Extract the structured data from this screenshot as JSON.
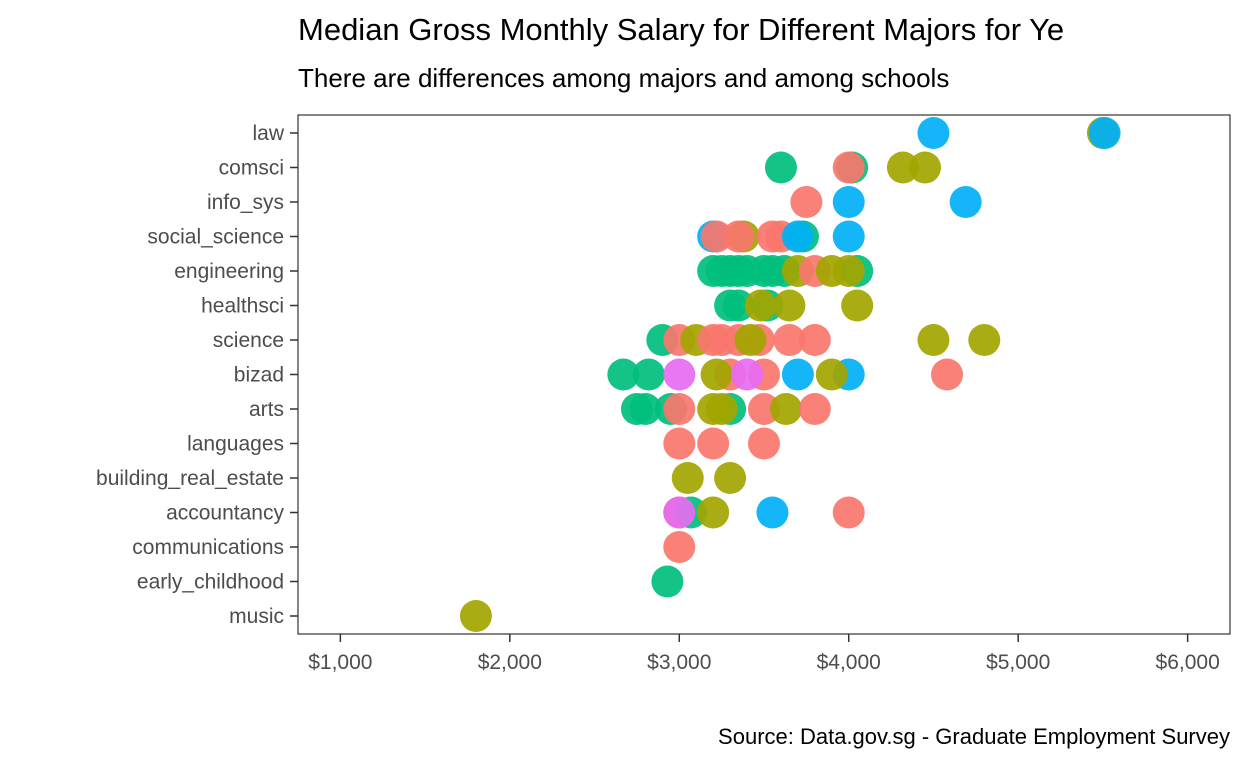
{
  "chart_data": {
    "type": "scatter",
    "title": "Median Gross Monthly Salary for Different Majors for Ye",
    "subtitle": "There are differences among majors and among schools",
    "caption": "Source: Data.gov.sg - Graduate Employment Survey",
    "xlabel": "",
    "ylabel": "",
    "xlim": [
      750,
      6250
    ],
    "x_ticks": [
      1000,
      2000,
      3000,
      4000,
      5000,
      6000
    ],
    "x_tick_labels": [
      "$1,000",
      "$2,000",
      "$3,000",
      "$4,000",
      "$5,000",
      "$6,000"
    ],
    "categories": [
      "law",
      "comsci",
      "info_sys",
      "social_science",
      "engineering",
      "healthsci",
      "science",
      "bizad",
      "arts",
      "languages",
      "building_real_estate",
      "accountancy",
      "communications",
      "early_childhood",
      "music"
    ],
    "grid": false,
    "legend": "none",
    "colors": {
      "red": "#f8766d",
      "olive": "#a3a500",
      "green": "#00bf7d",
      "blue": "#00b0f6",
      "magenta": "#e76bf3"
    },
    "points": [
      {
        "major": "law",
        "x": 4500,
        "color": "blue"
      },
      {
        "major": "law",
        "x": 5500,
        "color": "olive"
      },
      {
        "major": "law",
        "x": 5510,
        "color": "blue"
      },
      {
        "major": "comsci",
        "x": 3600,
        "color": "green"
      },
      {
        "major": "comsci",
        "x": 4020,
        "color": "green"
      },
      {
        "major": "comsci",
        "x": 4000,
        "color": "red"
      },
      {
        "major": "comsci",
        "x": 4320,
        "color": "olive"
      },
      {
        "major": "comsci",
        "x": 4450,
        "color": "olive"
      },
      {
        "major": "info_sys",
        "x": 3750,
        "color": "red"
      },
      {
        "major": "info_sys",
        "x": 4000,
        "color": "blue"
      },
      {
        "major": "info_sys",
        "x": 4690,
        "color": "blue"
      },
      {
        "major": "social_science",
        "x": 3200,
        "color": "blue"
      },
      {
        "major": "social_science",
        "x": 3220,
        "color": "red"
      },
      {
        "major": "social_science",
        "x": 3380,
        "color": "olive"
      },
      {
        "major": "social_science",
        "x": 3350,
        "color": "red"
      },
      {
        "major": "social_science",
        "x": 3550,
        "color": "red"
      },
      {
        "major": "social_science",
        "x": 3600,
        "color": "red"
      },
      {
        "major": "social_science",
        "x": 3730,
        "color": "green"
      },
      {
        "major": "social_science",
        "x": 3700,
        "color": "blue"
      },
      {
        "major": "social_science",
        "x": 4000,
        "color": "blue"
      },
      {
        "major": "engineering",
        "x": 3200,
        "color": "green"
      },
      {
        "major": "engineering",
        "x": 3250,
        "color": "green"
      },
      {
        "major": "engineering",
        "x": 3300,
        "color": "green"
      },
      {
        "major": "engineering",
        "x": 3350,
        "color": "green"
      },
      {
        "major": "engineering",
        "x": 3400,
        "color": "green"
      },
      {
        "major": "engineering",
        "x": 3500,
        "color": "green"
      },
      {
        "major": "engineering",
        "x": 3550,
        "color": "green"
      },
      {
        "major": "engineering",
        "x": 3620,
        "color": "green"
      },
      {
        "major": "engineering",
        "x": 3700,
        "color": "olive"
      },
      {
        "major": "engineering",
        "x": 3800,
        "color": "red"
      },
      {
        "major": "engineering",
        "x": 3900,
        "color": "olive"
      },
      {
        "major": "engineering",
        "x": 4050,
        "color": "green"
      },
      {
        "major": "engineering",
        "x": 4000,
        "color": "olive"
      },
      {
        "major": "healthsci",
        "x": 3300,
        "color": "green"
      },
      {
        "major": "healthsci",
        "x": 3350,
        "color": "green"
      },
      {
        "major": "healthsci",
        "x": 3520,
        "color": "green"
      },
      {
        "major": "healthsci",
        "x": 3480,
        "color": "olive"
      },
      {
        "major": "healthsci",
        "x": 3650,
        "color": "olive"
      },
      {
        "major": "healthsci",
        "x": 4050,
        "color": "olive"
      },
      {
        "major": "science",
        "x": 2900,
        "color": "green"
      },
      {
        "major": "science",
        "x": 3000,
        "color": "red"
      },
      {
        "major": "science",
        "x": 3100,
        "color": "olive"
      },
      {
        "major": "science",
        "x": 3200,
        "color": "red"
      },
      {
        "major": "science",
        "x": 3250,
        "color": "red"
      },
      {
        "major": "science",
        "x": 3350,
        "color": "red"
      },
      {
        "major": "science",
        "x": 3470,
        "color": "red"
      },
      {
        "major": "science",
        "x": 3420,
        "color": "olive"
      },
      {
        "major": "science",
        "x": 3650,
        "color": "red"
      },
      {
        "major": "science",
        "x": 3800,
        "color": "red"
      },
      {
        "major": "science",
        "x": 4500,
        "color": "olive"
      },
      {
        "major": "science",
        "x": 4800,
        "color": "olive"
      },
      {
        "major": "bizad",
        "x": 2670,
        "color": "green"
      },
      {
        "major": "bizad",
        "x": 2820,
        "color": "green"
      },
      {
        "major": "bizad",
        "x": 3000,
        "color": "magenta"
      },
      {
        "major": "bizad",
        "x": 3300,
        "color": "red"
      },
      {
        "major": "bizad",
        "x": 3220,
        "color": "olive"
      },
      {
        "major": "bizad",
        "x": 3500,
        "color": "red"
      },
      {
        "major": "bizad",
        "x": 3400,
        "color": "magenta"
      },
      {
        "major": "bizad",
        "x": 3700,
        "color": "blue"
      },
      {
        "major": "bizad",
        "x": 4000,
        "color": "blue"
      },
      {
        "major": "bizad",
        "x": 3900,
        "color": "olive"
      },
      {
        "major": "bizad",
        "x": 4580,
        "color": "red"
      },
      {
        "major": "arts",
        "x": 2750,
        "color": "green"
      },
      {
        "major": "arts",
        "x": 2800,
        "color": "green"
      },
      {
        "major": "arts",
        "x": 2950,
        "color": "green"
      },
      {
        "major": "arts",
        "x": 3000,
        "color": "red"
      },
      {
        "major": "arts",
        "x": 3300,
        "color": "green"
      },
      {
        "major": "arts",
        "x": 3200,
        "color": "olive"
      },
      {
        "major": "arts",
        "x": 3250,
        "color": "olive"
      },
      {
        "major": "arts",
        "x": 3500,
        "color": "red"
      },
      {
        "major": "arts",
        "x": 3630,
        "color": "olive"
      },
      {
        "major": "arts",
        "x": 3800,
        "color": "red"
      },
      {
        "major": "languages",
        "x": 3000,
        "color": "red"
      },
      {
        "major": "languages",
        "x": 3200,
        "color": "red"
      },
      {
        "major": "languages",
        "x": 3500,
        "color": "red"
      },
      {
        "major": "building_real_estate",
        "x": 3050,
        "color": "olive"
      },
      {
        "major": "building_real_estate",
        "x": 3300,
        "color": "olive"
      },
      {
        "major": "accountancy",
        "x": 3000,
        "color": "red"
      },
      {
        "major": "accountancy",
        "x": 3070,
        "color": "green"
      },
      {
        "major": "accountancy",
        "x": 3200,
        "color": "olive"
      },
      {
        "major": "accountancy",
        "x": 3000,
        "color": "magenta"
      },
      {
        "major": "accountancy",
        "x": 3550,
        "color": "blue"
      },
      {
        "major": "accountancy",
        "x": 4000,
        "color": "red"
      },
      {
        "major": "communications",
        "x": 3000,
        "color": "red"
      },
      {
        "major": "early_childhood",
        "x": 2930,
        "color": "green"
      },
      {
        "major": "music",
        "x": 1800,
        "color": "olive"
      }
    ]
  }
}
